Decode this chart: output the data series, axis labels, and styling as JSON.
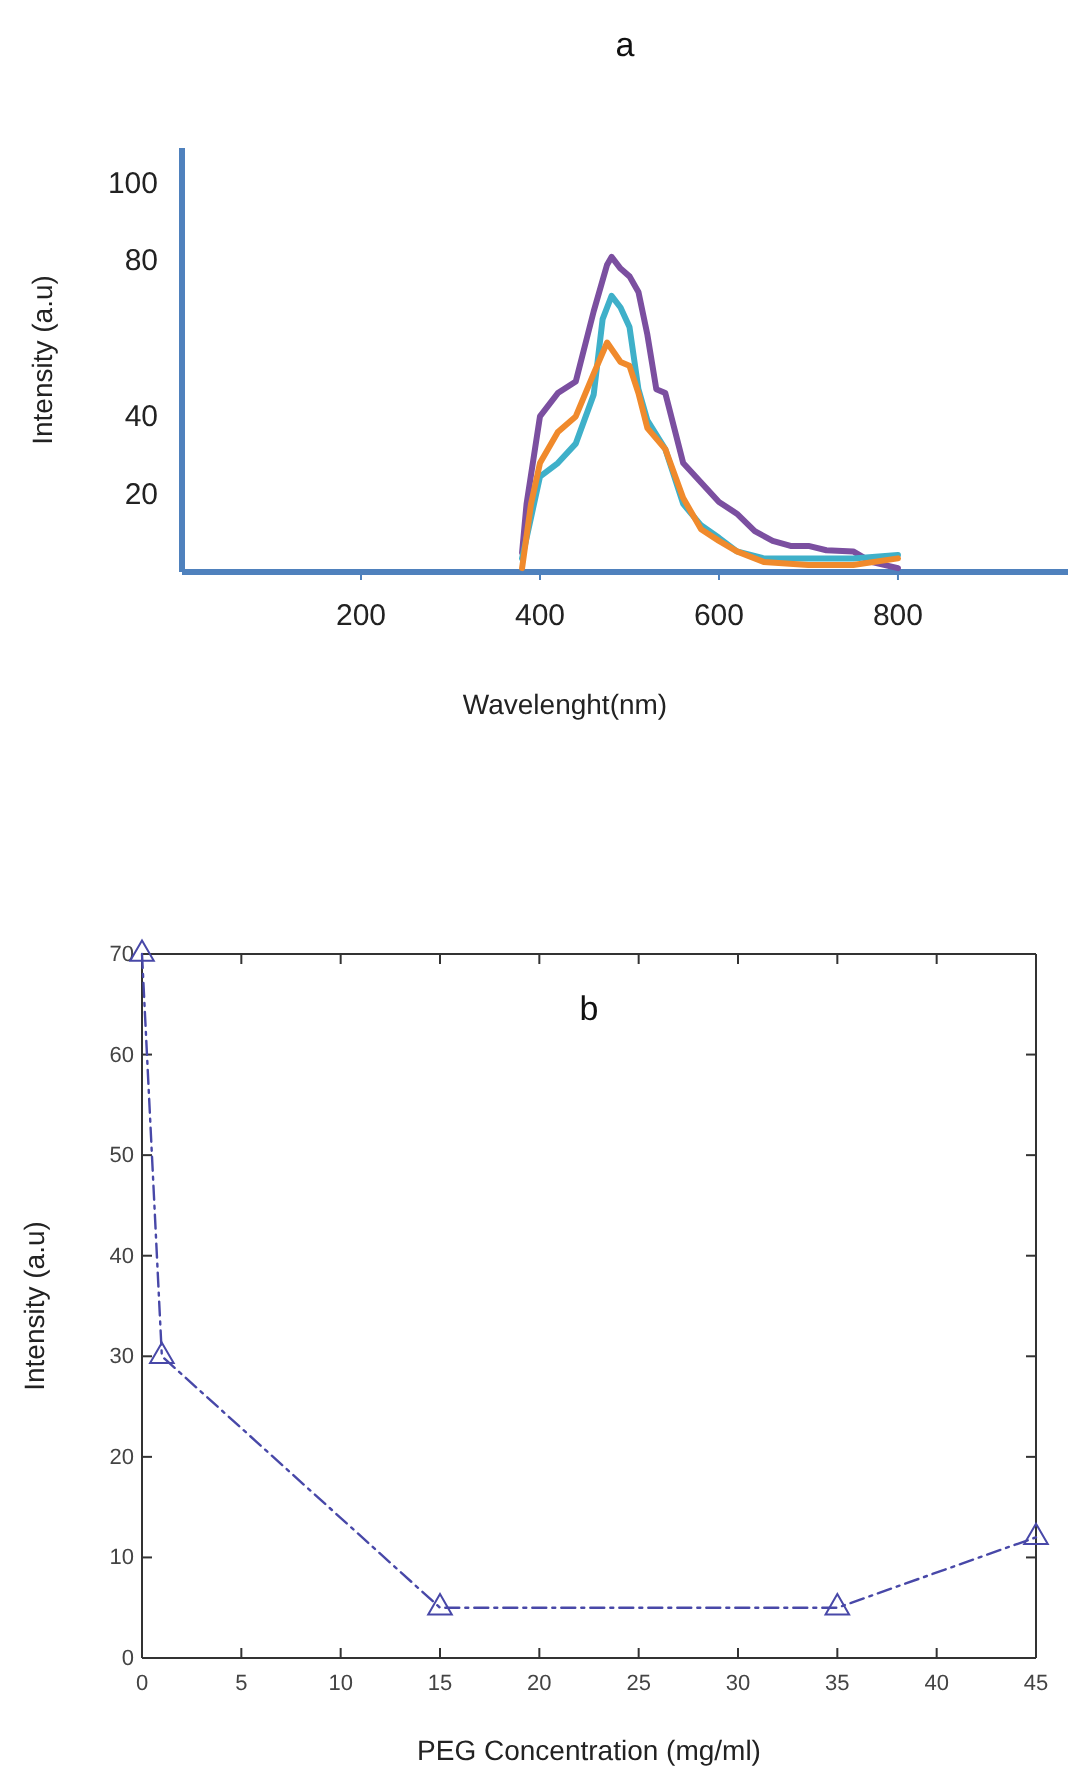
{
  "chart_data": [
    {
      "type": "line",
      "title": "a",
      "xlabel": "Wavelenght(nm)",
      "ylabel": "Intensity (a.u)",
      "xlim": [
        0,
        990
      ],
      "ylim": [
        0,
        109
      ],
      "xticks": [
        200,
        400,
        600,
        800
      ],
      "yticks": [
        20,
        40,
        80,
        100
      ],
      "marker": "none",
      "line_style": "solid",
      "series": [
        {
          "color": "#7b4fa0",
          "x": [
            380,
            385,
            400,
            420,
            440,
            460,
            475,
            480,
            490,
            500,
            510,
            520,
            530,
            540,
            550,
            560,
            580,
            600,
            620,
            640,
            660,
            680,
            700,
            720,
            750,
            770,
            800
          ],
          "values": [
            5,
            17.5,
            40,
            46,
            49,
            67,
            79,
            81,
            78,
            76,
            72,
            61,
            47,
            46,
            37,
            28,
            23,
            18,
            15,
            10.5,
            8,
            6.7,
            6.7,
            5.6,
            5.3,
            2.6,
            1
          ]
        },
        {
          "color": "#3fb0c9",
          "x": [
            380,
            390,
            400,
            420,
            440,
            460,
            470,
            480,
            490,
            500,
            510,
            520,
            540,
            560,
            580,
            600,
            620,
            650,
            700,
            750,
            800
          ],
          "values": [
            3.5,
            14,
            24.5,
            28,
            33,
            45.6,
            65,
            71,
            68,
            63,
            47,
            39,
            31.6,
            17.5,
            12,
            8.8,
            5.3,
            3.5,
            3.5,
            3.5,
            4.4
          ]
        },
        {
          "color": "#f08a2c",
          "x": [
            380,
            390,
            400,
            420,
            440,
            460,
            475,
            490,
            500,
            510,
            520,
            540,
            560,
            580,
            600,
            620,
            650,
            700,
            750,
            800
          ],
          "values": [
            1,
            17.5,
            28,
            36,
            40,
            51,
            59,
            54,
            53,
            46,
            37,
            31.6,
            19,
            11,
            8,
            5.3,
            2.6,
            1.8,
            1.8,
            3.5
          ]
        }
      ]
    },
    {
      "type": "line",
      "title": "b",
      "xlabel": "PEG Concentration (mg/ml)",
      "ylabel": "Intensity (a.u)",
      "xlim": [
        0,
        45
      ],
      "ylim": [
        0,
        70
      ],
      "xticks": [
        0,
        5,
        10,
        15,
        20,
        25,
        30,
        35,
        40,
        45
      ],
      "yticks": [
        0,
        10,
        20,
        30,
        40,
        50,
        60,
        70
      ],
      "marker": "triangle",
      "line_style": "dashed",
      "series": [
        {
          "color": "#4848a8",
          "x": [
            0,
            1,
            15,
            35,
            45
          ],
          "values": [
            70,
            30,
            5,
            5,
            12
          ]
        }
      ]
    }
  ]
}
